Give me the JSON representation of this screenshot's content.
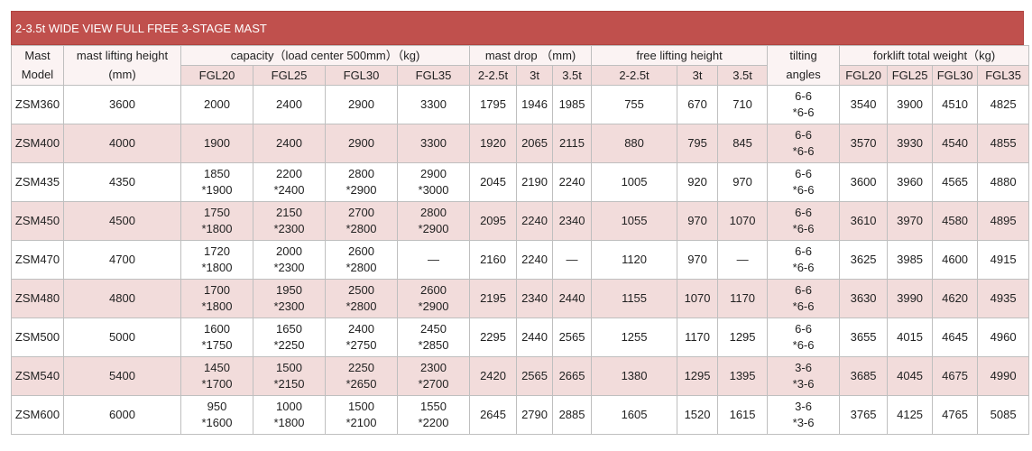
{
  "title": "2-3.5t WIDE VIEW FULL FREE 3-STAGE MAST",
  "header": [
    [
      "Mast",
      "mast lifting height",
      "capacity（load center 500mm）（kg)",
      "mast drop （mm)",
      "free lifting height",
      "tilting",
      "forklift total weight（kg)"
    ],
    [
      "Model",
      "(mm)",
      "FGL20",
      "FGL25",
      "FGL30",
      "FGL35",
      "2-2.5t",
      "3t",
      "3.5t",
      "2-2.5t",
      "3t",
      "3.5t",
      "angles",
      "FGL20",
      "FGL25",
      "FGL30",
      "FGL35"
    ]
  ],
  "rows": [
    [
      "ZSM360",
      3600,
      2000,
      2400,
      2900,
      3300,
      1795,
      1946,
      1985,
      755,
      670,
      710,
      [
        "6-6",
        "*6-6"
      ],
      3540,
      3900,
      4510,
      4825
    ],
    [
      "ZSM400",
      4000,
      1900,
      2400,
      2900,
      3300,
      1920,
      2065,
      2115,
      880,
      795,
      845,
      [
        "6-6",
        "*6-6"
      ],
      3570,
      3930,
      4540,
      4855
    ],
    [
      "ZSM435",
      4350,
      [
        1850,
        "*1900"
      ],
      [
        2200,
        "*2400"
      ],
      [
        2800,
        "*2900"
      ],
      [
        2900,
        "*3000"
      ],
      2045,
      2190,
      2240,
      1005,
      920,
      970,
      [
        "6-6",
        "*6-6"
      ],
      3600,
      3960,
      4565,
      4880
    ],
    [
      "ZSM450",
      4500,
      [
        1750,
        "*1800"
      ],
      [
        2150,
        "*2300"
      ],
      [
        2700,
        "*2800"
      ],
      [
        2800,
        "*2900"
      ],
      2095,
      2240,
      2340,
      1055,
      970,
      1070,
      [
        "6-6",
        "*6-6"
      ],
      3610,
      3970,
      4580,
      4895
    ],
    [
      "ZSM470",
      4700,
      [
        1720,
        "*1800"
      ],
      [
        2000,
        "*2300"
      ],
      [
        2600,
        "*2800"
      ],
      "—",
      2160,
      2240,
      "—",
      1120,
      970,
      "—",
      [
        "6-6",
        "*6-6"
      ],
      3625,
      3985,
      4600,
      4915
    ],
    [
      "ZSM480",
      4800,
      [
        1700,
        "*1800"
      ],
      [
        1950,
        "*2300"
      ],
      [
        2500,
        "*2800"
      ],
      [
        2600,
        "*2900"
      ],
      2195,
      2340,
      2440,
      1155,
      1070,
      1170,
      [
        "6-6",
        "*6-6"
      ],
      3630,
      3990,
      4620,
      4935
    ],
    [
      "ZSM500",
      5000,
      [
        1600,
        "*1750"
      ],
      [
        1650,
        "*2250"
      ],
      [
        2400,
        "*2750"
      ],
      [
        2450,
        "*2850"
      ],
      2295,
      2440,
      2565,
      1255,
      1170,
      1295,
      [
        "6-6",
        "*6-6"
      ],
      3655,
      4015,
      4645,
      4960
    ],
    [
      "ZSM540",
      5400,
      [
        1450,
        "*1700"
      ],
      [
        1500,
        "*2150"
      ],
      [
        2250,
        "*2650"
      ],
      [
        2300,
        "*2700"
      ],
      2420,
      2565,
      2665,
      1380,
      1295,
      1395,
      [
        "3-6",
        "*3-6"
      ],
      3685,
      4045,
      4675,
      4990
    ],
    [
      "ZSM600",
      6000,
      [
        950,
        "*1600"
      ],
      [
        1000,
        "*1800"
      ],
      [
        1500,
        "*2100"
      ],
      [
        1550,
        "*2200"
      ],
      2645,
      2790,
      2885,
      1605,
      1520,
      1615,
      [
        "3-6",
        "*3-6"
      ],
      3765,
      4125,
      4765,
      5085
    ]
  ]
}
